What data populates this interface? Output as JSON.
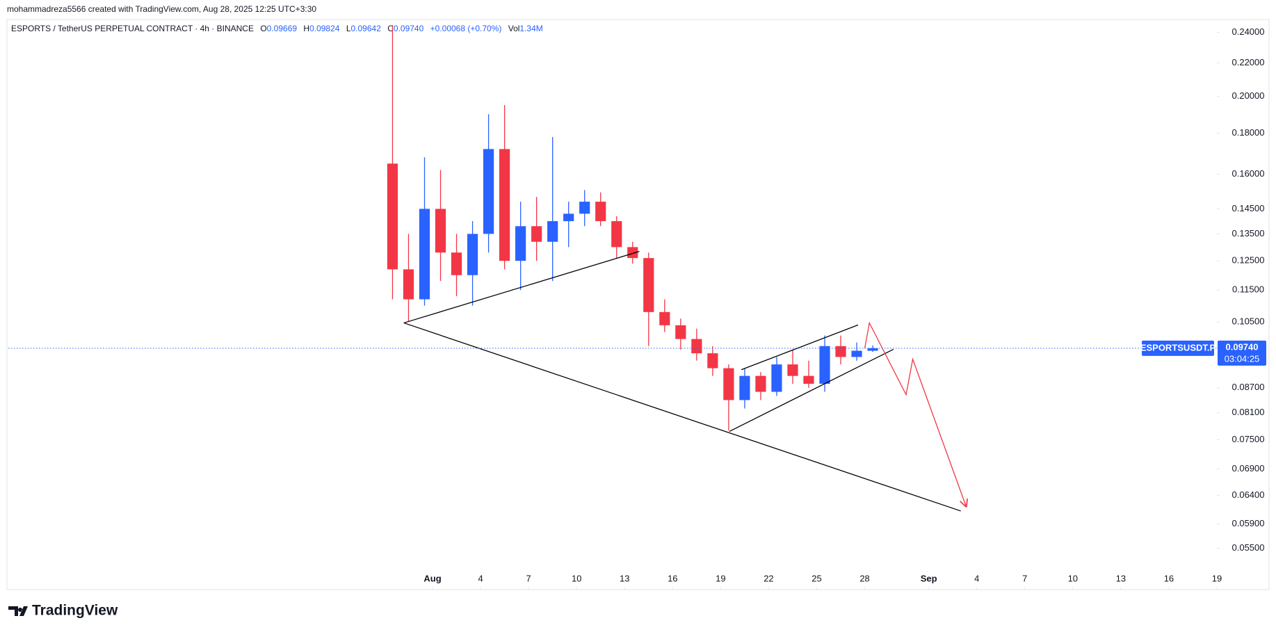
{
  "header": {
    "credit": "mohammadreza5566 created with TradingView.com, Aug 28, 2025 12:25 UTC+3:30",
    "logo": "TradingView"
  },
  "chart_data": {
    "type": "candlestick",
    "symbol": "ESPORTS / TetherUS PERPETUAL CONTRACT · 4h · BINANCE",
    "ticker": "ESPORTSUSDT.P",
    "legend": {
      "o_label": "O",
      "open": {
        "value": 0.09669,
        "label": "0.09669"
      },
      "h_label": "H",
      "high": {
        "value": 0.09824,
        "label": "0.09824"
      },
      "l_label": "L",
      "low": {
        "value": 0.09642,
        "label": "0.09642"
      },
      "c_label": "C",
      "close": {
        "value": 0.0974,
        "label": "0.09740"
      },
      "change": "+0.00068 (+0.70%)",
      "vol_label": "Vol",
      "volume": {
        "value": 1340000,
        "label": "1.34M"
      }
    },
    "last_price": {
      "value": 0.0974,
      "label": "0.09740"
    },
    "countdown": "03:04:25",
    "log_scale": true,
    "grid": false,
    "up_color": "#2962ff",
    "down_color": "#f23645",
    "x": [
      "2025-07-29",
      "2025-07-30",
      "2025-07-31",
      "2025-08-01",
      "2025-08-02",
      "2025-08-03",
      "2025-08-04",
      "2025-08-05",
      "2025-08-06",
      "2025-08-07",
      "2025-08-08",
      "2025-08-09",
      "2025-08-10",
      "2025-08-11",
      "2025-08-12",
      "2025-08-13",
      "2025-08-14",
      "2025-08-15",
      "2025-08-16",
      "2025-08-17",
      "2025-08-18",
      "2025-08-19",
      "2025-08-20",
      "2025-08-21",
      "2025-08-22",
      "2025-08-23",
      "2025-08-24",
      "2025-08-25",
      "2025-08-26",
      "2025-08-27",
      "2025-08-28"
    ],
    "open": [
      0.165,
      0.122,
      0.112,
      0.145,
      0.128,
      0.12,
      0.135,
      0.172,
      0.125,
      0.138,
      0.132,
      0.14,
      0.143,
      0.148,
      0.14,
      0.13,
      0.126,
      0.108,
      0.104,
      0.1,
      0.096,
      0.092,
      0.084,
      0.09,
      0.086,
      0.093,
      0.09,
      0.088,
      0.098,
      0.095,
      0.0967
    ],
    "high": [
      0.245,
      0.135,
      0.168,
      0.162,
      0.135,
      0.14,
      0.19,
      0.195,
      0.148,
      0.15,
      0.178,
      0.148,
      0.153,
      0.152,
      0.142,
      0.132,
      0.128,
      0.112,
      0.106,
      0.103,
      0.098,
      0.093,
      0.092,
      0.091,
      0.095,
      0.097,
      0.094,
      0.101,
      0.101,
      0.099,
      0.0982
    ],
    "low": [
      0.112,
      0.105,
      0.11,
      0.118,
      0.113,
      0.11,
      0.128,
      0.122,
      0.115,
      0.125,
      0.118,
      0.13,
      0.138,
      0.138,
      0.126,
      0.124,
      0.098,
      0.102,
      0.097,
      0.094,
      0.09,
      0.077,
      0.082,
      0.084,
      0.085,
      0.088,
      0.087,
      0.086,
      0.093,
      0.094,
      0.0964
    ],
    "close": [
      0.122,
      0.112,
      0.145,
      0.128,
      0.12,
      0.135,
      0.172,
      0.125,
      0.138,
      0.132,
      0.14,
      0.143,
      0.148,
      0.14,
      0.13,
      0.126,
      0.108,
      0.104,
      0.1,
      0.096,
      0.092,
      0.084,
      0.09,
      0.086,
      0.093,
      0.09,
      0.088,
      0.098,
      0.095,
      0.0967,
      0.0974
    ],
    "xlim": [
      "2025-07-05T12:00",
      "2025-09-19T00:00"
    ],
    "xticks": [
      {
        "value": "2025-08-01",
        "label": "Aug"
      },
      {
        "value": "2025-08-04",
        "label": "4"
      },
      {
        "value": "2025-08-07",
        "label": "7"
      },
      {
        "value": "2025-08-10",
        "label": "10"
      },
      {
        "value": "2025-08-13",
        "label": "13"
      },
      {
        "value": "2025-08-16",
        "label": "16"
      },
      {
        "value": "2025-08-19",
        "label": "19"
      },
      {
        "value": "2025-08-22",
        "label": "22"
      },
      {
        "value": "2025-08-25",
        "label": "25"
      },
      {
        "value": "2025-08-28",
        "label": "28"
      },
      {
        "value": "2025-09-01",
        "label": "Sep"
      },
      {
        "value": "2025-09-04",
        "label": "4"
      },
      {
        "value": "2025-09-07",
        "label": "7"
      },
      {
        "value": "2025-09-10",
        "label": "10"
      },
      {
        "value": "2025-09-13",
        "label": "13"
      },
      {
        "value": "2025-09-16",
        "label": "16"
      },
      {
        "value": "2025-09-19",
        "label": "19"
      }
    ],
    "ylim": [
      0.0488,
      0.249
    ],
    "yticks": [
      {
        "value": 0.24,
        "label": "0.24000"
      },
      {
        "value": 0.22,
        "label": "0.22000"
      },
      {
        "value": 0.2,
        "label": "0.20000"
      },
      {
        "value": 0.18,
        "label": "0.18000"
      },
      {
        "value": 0.16,
        "label": "0.16000"
      },
      {
        "value": 0.145,
        "label": "0.14500"
      },
      {
        "value": 0.135,
        "label": "0.13500"
      },
      {
        "value": 0.125,
        "label": "0.12500"
      },
      {
        "value": 0.115,
        "label": "0.11500"
      },
      {
        "value": 0.105,
        "label": "0.10500"
      },
      {
        "value": 0.087,
        "label": "0.08700"
      },
      {
        "value": 0.081,
        "label": "0.08100"
      },
      {
        "value": 0.075,
        "label": "0.07500"
      },
      {
        "value": 0.069,
        "label": "0.06900"
      },
      {
        "value": 0.064,
        "label": "0.06400"
      },
      {
        "value": 0.059,
        "label": "0.05900"
      },
      {
        "value": 0.055,
        "label": "0.05500"
      }
    ],
    "drawings": [
      {
        "color": "#000000",
        "points": [
          {
            "time": "2025-07-30T05:00",
            "price": 0.1047
          },
          {
            "time": "2025-08-13T22:00",
            "price": 0.1284
          }
        ]
      },
      {
        "color": "#000000",
        "points": [
          {
            "time": "2025-07-30T05:00",
            "price": 0.1047
          },
          {
            "time": "2025-09-03T00:00",
            "price": 0.0612
          }
        ]
      },
      {
        "color": "#000000",
        "points": [
          {
            "time": "2025-08-19T13:00",
            "price": 0.0768
          },
          {
            "time": "2025-08-29T19:00",
            "price": 0.0971
          }
        ]
      },
      {
        "color": "#000000",
        "points": [
          {
            "time": "2025-08-20T07:00",
            "price": 0.0916
          },
          {
            "time": "2025-08-27T14:00",
            "price": 0.1041
          }
        ]
      },
      {
        "color": "#f23645",
        "points": [
          {
            "time": "2025-08-28T00:00",
            "price": 0.0974
          },
          {
            "time": "2025-08-28T07:00",
            "price": 0.1047
          },
          {
            "time": "2025-08-30T14:00",
            "price": 0.0853
          },
          {
            "time": "2025-08-31T00:00",
            "price": 0.0944
          },
          {
            "time": "2025-09-03T08:00",
            "price": 0.062
          }
        ]
      }
    ]
  }
}
